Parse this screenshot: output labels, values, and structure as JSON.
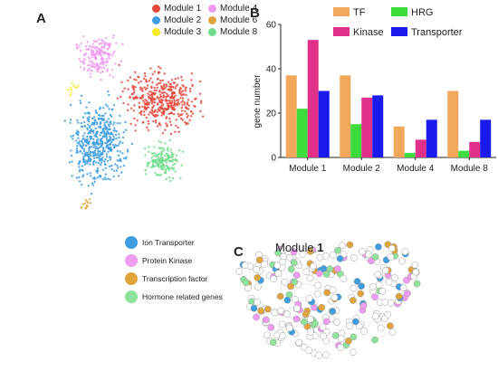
{
  "panels": {
    "a": "A",
    "b": "B",
    "c": "C"
  },
  "module_legend": [
    {
      "label": "Module 1",
      "color": "#e5473b"
    },
    {
      "label": "Module 4",
      "color": "#ee9cf0"
    },
    {
      "label": "Module 2",
      "color": "#3f9ee0"
    },
    {
      "label": "Module 6",
      "color": "#e0a43c"
    },
    {
      "label": "Module 3",
      "color": "#f3ea22"
    },
    {
      "label": "Module 8",
      "color": "#6fdc8c"
    }
  ],
  "function_legend": [
    {
      "label": "Ion Transporter",
      "color": "#3f9ee0"
    },
    {
      "label": "Protein Kinase",
      "color": "#ee9cf0"
    },
    {
      "label": "Transcription factor",
      "color": "#e0a43c"
    },
    {
      "label": "Hormone related genes",
      "color": "#8fe29b"
    }
  ],
  "network_title": {
    "prefix": "Module ",
    "number": "1"
  },
  "chart_data": {
    "type": "bar",
    "categories": [
      "Module 1",
      "Module 2",
      "Module 4",
      "Module 8"
    ],
    "series": [
      {
        "name": "TF",
        "color": "#f2a85a",
        "values": [
          37,
          37,
          14,
          30
        ]
      },
      {
        "name": "HRG",
        "color": "#3cdc3c",
        "values": [
          22,
          15,
          2,
          3
        ]
      },
      {
        "name": "Kinase",
        "color": "#e0308a",
        "values": [
          53,
          27,
          8,
          7
        ]
      },
      {
        "name": "Transporter",
        "color": "#1a1aee",
        "values": [
          30,
          28,
          17,
          17
        ]
      }
    ],
    "xlabel": "",
    "ylabel": "gene number",
    "ylim": [
      0,
      60
    ],
    "yticks": [
      0,
      20,
      40,
      60
    ],
    "legend_placement": "top",
    "grid": false
  }
}
